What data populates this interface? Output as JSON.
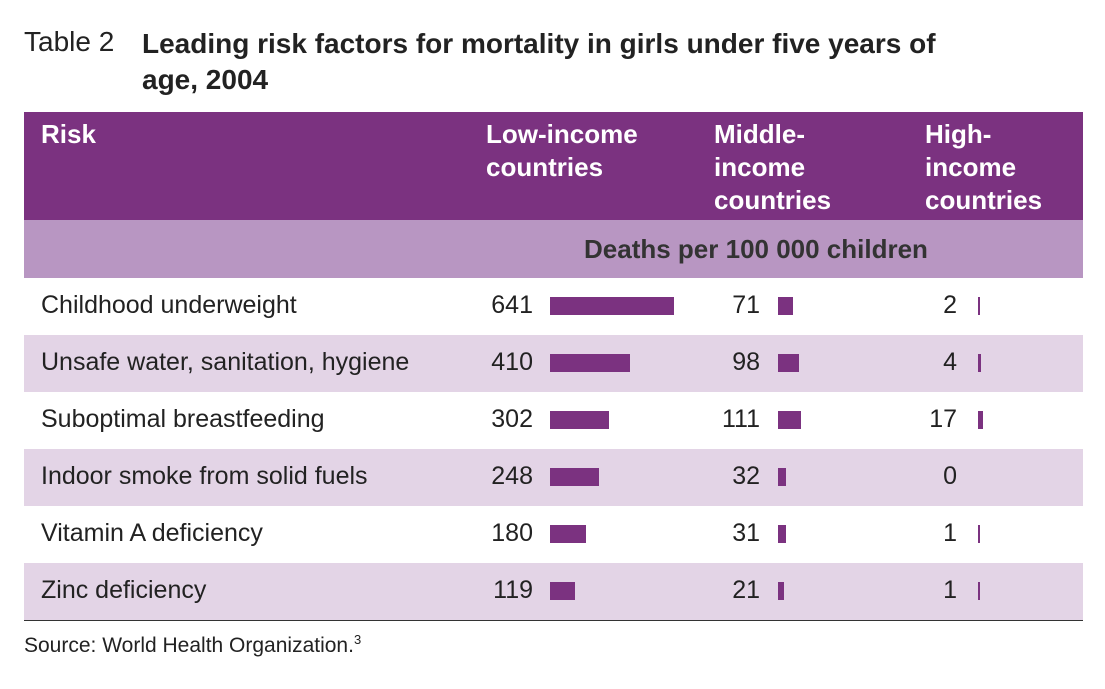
{
  "label": "Table 2",
  "title": "Leading risk factors for mortality in girls under five years of age, 2004",
  "table": {
    "headers": [
      "Risk",
      "Low-income countries",
      "Middle-income countries",
      "High-income countries"
    ],
    "subheader": "Deaths per 100 000 children",
    "rows": [
      [
        "Childhood underweight",
        641,
        71,
        2
      ],
      [
        "Unsafe water, sanitation, hygiene",
        410,
        98,
        4
      ],
      [
        "Suboptimal breastfeeding",
        302,
        111,
        17
      ],
      [
        "Indoor smoke from solid fuels",
        248,
        32,
        0
      ],
      [
        "Vitamin A deficiency",
        180,
        31,
        1
      ],
      [
        "Zinc deficiency",
        119,
        21,
        1
      ]
    ]
  },
  "source": "Source: World Health Organization.",
  "source_note": "3",
  "color": "#7b3280"
}
